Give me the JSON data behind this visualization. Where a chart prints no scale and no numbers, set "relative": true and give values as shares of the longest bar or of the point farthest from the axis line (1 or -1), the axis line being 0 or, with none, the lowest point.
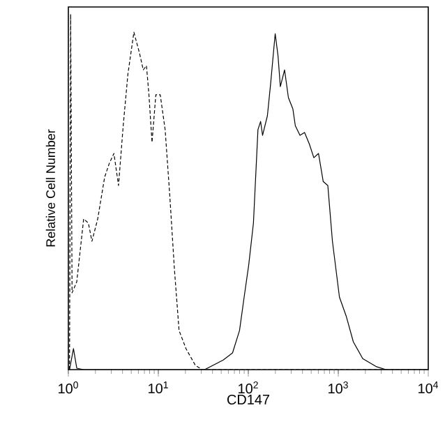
{
  "chart_data": {
    "type": "line",
    "ylabel": "Relative Cell Number",
    "xlabel": "CD147",
    "relative": true,
    "log": "x",
    "xlim": [
      1,
      10000
    ],
    "xticks": [
      {
        "value": 1,
        "label": "10$^{0}$"
      },
      {
        "value": 10,
        "label": "10$^{1}$"
      },
      {
        "value": 100,
        "label": "10$^{2}$"
      },
      {
        "value": 1000,
        "label": "10$^{3}$"
      },
      {
        "value": 10000,
        "label": "10$^{4}$"
      }
    ],
    "tick_labels": "x",
    "marker": "none",
    "series": [
      {
        "color": "#000000",
        "line_style": "dashed",
        "x": [
          1.03,
          1.06,
          1.1,
          1.24,
          1.48,
          1.67,
          1.83,
          2.12,
          2.53,
          2.85,
          3.21,
          3.61,
          4.07,
          4.59,
          5.35,
          6.18,
          6.8,
          7.38,
          7.85,
          8.51,
          9.38,
          10.5,
          11.9,
          13.4,
          15.1,
          17.0,
          20.3,
          25.8,
          30.8,
          10000
        ],
        "values": [
          0,
          1.0,
          0.216,
          0.247,
          0.424,
          0.412,
          0.361,
          0.424,
          0.541,
          0.58,
          0.608,
          0.518,
          0.686,
          0.831,
          0.949,
          0.89,
          0.843,
          0.855,
          0.776,
          0.639,
          0.773,
          0.773,
          0.675,
          0.49,
          0.282,
          0.11,
          0.059,
          0.012,
          0,
          0
        ]
      },
      {
        "color": "#000000",
        "line_style": "solid",
        "x": [
          1.03,
          1.14,
          1.24,
          1.48,
          32.7,
          52.6,
          66.8,
          79.9,
          89.9,
          101,
          114,
          128,
          137,
          144,
          163,
          177,
          199,
          214,
          227,
          253,
          279,
          313,
          333,
          375,
          422,
          476,
          535,
          603,
          680,
          765,
          861,
          1030,
          1230,
          1470,
          1870,
          2670,
          3390,
          10000
        ],
        "values": [
          0,
          0.059,
          0.004,
          0,
          0,
          0.027,
          0.047,
          0.11,
          0.204,
          0.294,
          0.412,
          0.675,
          0.698,
          0.659,
          0.714,
          0.804,
          0.945,
          0.882,
          0.796,
          0.843,
          0.765,
          0.733,
          0.686,
          0.659,
          0.667,
          0.635,
          0.596,
          0.608,
          0.529,
          0.518,
          0.361,
          0.204,
          0.149,
          0.078,
          0.031,
          0.008,
          0,
          0
        ]
      }
    ]
  }
}
